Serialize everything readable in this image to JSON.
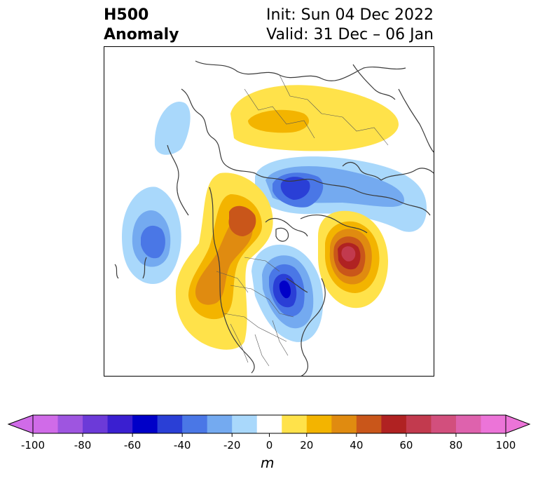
{
  "title": {
    "left_line1": "H500",
    "left_line2": "Anomaly",
    "right_line1": "Init: Sun 04 Dec 2022",
    "right_line2": "Valid: 31 Dec – 06 Jan"
  },
  "colorbar": {
    "unit": "m",
    "ticks": [
      "-100",
      "-80",
      "-60",
      "-40",
      "-20",
      "0",
      "20",
      "40",
      "60",
      "80",
      "100"
    ],
    "colors": [
      "#d06be8",
      "#9e55e0",
      "#6c3ad8",
      "#3a1fd0",
      "#0000c8",
      "#2a3fd6",
      "#4a77e6",
      "#74aaf0",
      "#a9d8fb",
      "#ffffff",
      "#ffe24a",
      "#f3b400",
      "#e08b10",
      "#c9561a",
      "#b02222",
      "#c23a4e",
      "#d24f7d",
      "#de62ad",
      "#ec74d8"
    ],
    "under_color": "#d06be8",
    "over_color": "#ec74d8"
  }
}
